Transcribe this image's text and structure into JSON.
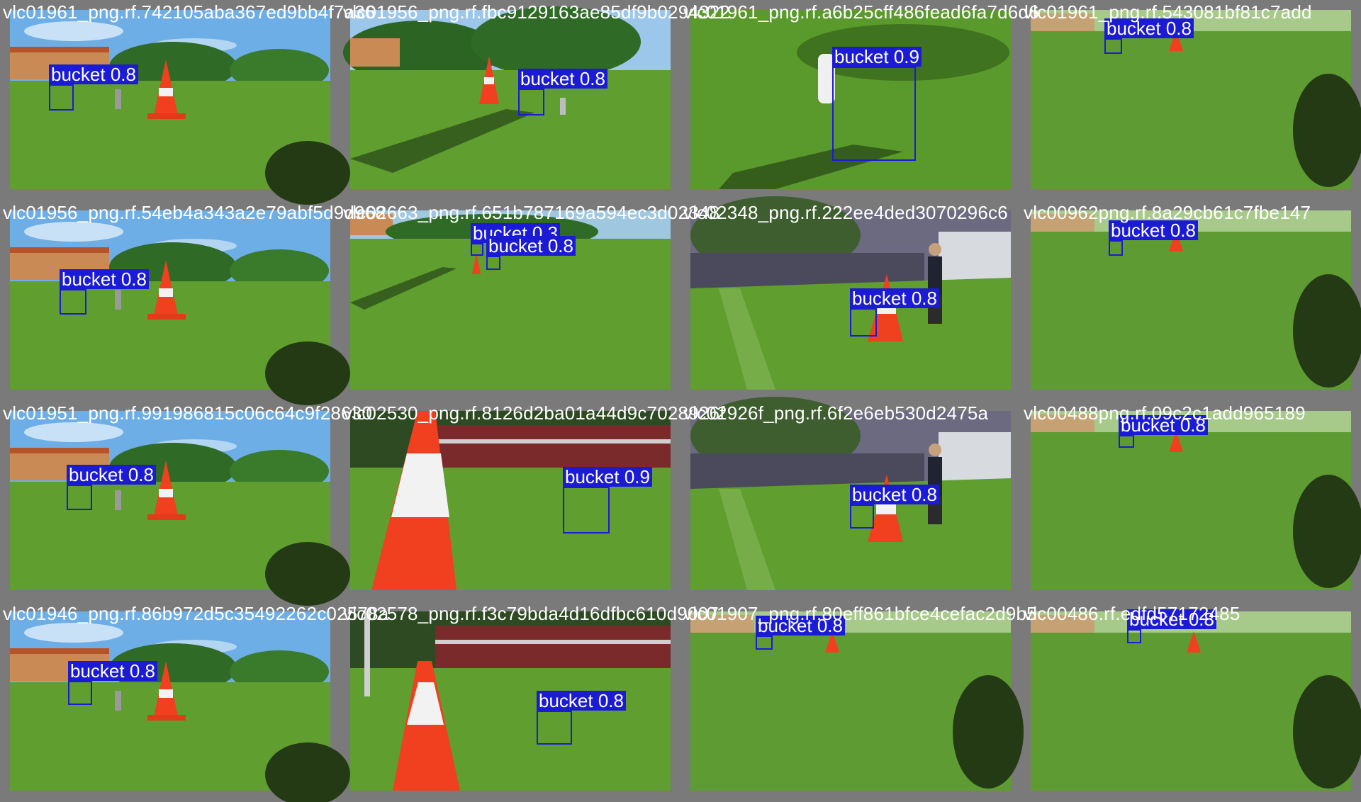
{
  "colors": {
    "box": "#1b1bd6",
    "label_text": "#ffffff",
    "frame": "#7a7a7a",
    "grass": "#5f9e2f",
    "sky": "#6eaee6"
  },
  "tiles": [
    {
      "caption": "vlc01961_png.rf.742105aba367ed9bb4f7a36",
      "scene": "wide-sky",
      "detections": [
        {
          "label": "bucket 0.8"
        }
      ]
    },
    {
      "caption": "vlc01956_png.rf.fbc9129163ae85df9b0294322",
      "scene": "wide-trees",
      "detections": [
        {
          "label": "bucket 0.8"
        }
      ]
    },
    {
      "caption": "vlc01961_png.rf.a6b25cff486fead6fa7d6d6",
      "scene": "close-grass",
      "detections": [
        {
          "label": "bucket 0.9"
        }
      ]
    },
    {
      "caption": "vlc01961_png.rf.543081bf81c7add",
      "scene": "far-grass",
      "detections": [
        {
          "label": "bucket 0.8"
        }
      ]
    },
    {
      "caption": "vlc01956_png.rf.54eb4a343a2e79abf5d9d968",
      "scene": "wide-sky",
      "detections": [
        {
          "label": "bucket 0.8"
        }
      ]
    },
    {
      "caption": "vlc02663_png.rf.651b787169a594ec3d02348",
      "scene": "wide-far",
      "detections": [
        {
          "label": "bucket 0.3"
        },
        {
          "label": "bucket 0.8"
        }
      ]
    },
    {
      "caption": "vlc02348_png.rf.222ee4ded3070296c6",
      "scene": "campus",
      "detections": [
        {
          "label": "bucket 0.8"
        }
      ]
    },
    {
      "caption": "vlc00962png.rf.8a29cb61c7fbe147",
      "scene": "far-grass",
      "detections": [
        {
          "label": "bucket 0.8"
        }
      ]
    },
    {
      "caption": "vlc01951_png.rf.991986815c06c64c9f28630",
      "scene": "wide-sky",
      "detections": [
        {
          "label": "bucket 0.8"
        }
      ]
    },
    {
      "caption": "vlc02530_png.rf.8126d2ba01a44d9c7028926f",
      "scene": "cone-close",
      "detections": [
        {
          "label": "bucket 0.9"
        }
      ]
    },
    {
      "caption": "vlc02926f_png.rf.6f2e6eb530d2475a",
      "scene": "campus",
      "detections": [
        {
          "label": "bucket 0.8"
        }
      ]
    },
    {
      "caption": "vlc00488png.rf.09c2c1add965189",
      "scene": "far-grass",
      "detections": [
        {
          "label": "bucket 0.8"
        }
      ]
    },
    {
      "caption": "vlc01946_png.rf.86b972d5c35492262c02578a",
      "scene": "wide-sky",
      "detections": [
        {
          "label": "bucket 0.8"
        }
      ]
    },
    {
      "caption": "vlc02578_png.rf.f3c79bda4d16dfbc610d9007",
      "scene": "cone-close2",
      "detections": [
        {
          "label": "bucket 0.8"
        }
      ]
    },
    {
      "caption": "vlc01907_png.rf.80eff861bfce4cefac2d9b5",
      "scene": "far-grass2",
      "detections": [
        {
          "label": "bucket 0.8"
        }
      ]
    },
    {
      "caption": "vlc00486.rf.edfd57172485",
      "scene": "far-grass3",
      "detections": [
        {
          "label": "bucket 0.8"
        }
      ]
    }
  ]
}
